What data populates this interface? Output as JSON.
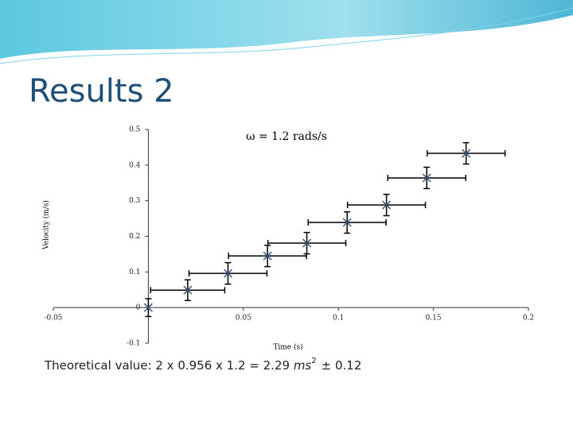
{
  "slide": {
    "title": "Results 2",
    "formula": "Theoretical value: 2 x 0.956 x 1.2 = 2.29",
    "unit": "ms",
    "unit_power": "2",
    "tolerance": "± 0.12"
  },
  "chart_data": {
    "type": "scatter",
    "annotation": "ω = 1.2 rads/s",
    "x_label": "Time (s)",
    "y_label": "Velocity (m/s)",
    "x": [
      0,
      0.0207,
      0.0419,
      0.0627,
      0.0834,
      0.1046,
      0.1253,
      0.1465,
      0.1672
    ],
    "values": [
      0,
      0.049,
      0.096,
      0.145,
      0.181,
      0.239,
      0.288,
      0.364,
      0.433
    ],
    "xerr": [
      0,
      0.0195,
      0.0205,
      0.0205,
      0.0205,
      0.0205,
      0.0205,
      0.0205,
      0.0205
    ],
    "yerr": [
      0.025,
      0.029,
      0.03,
      0.03,
      0.03,
      0.03,
      0.03,
      0.03,
      0.03
    ],
    "color": "#3d5a80",
    "error_color": "#000000",
    "xlim": [
      -0.05,
      0.2
    ],
    "ylim": [
      -0.1,
      0.5
    ],
    "xticks": [
      -0.05,
      0.05,
      0.1,
      0.15,
      0.2
    ],
    "yticks": [
      -0.1,
      0,
      0.1,
      0.2,
      0.3,
      0.4,
      0.5
    ]
  }
}
